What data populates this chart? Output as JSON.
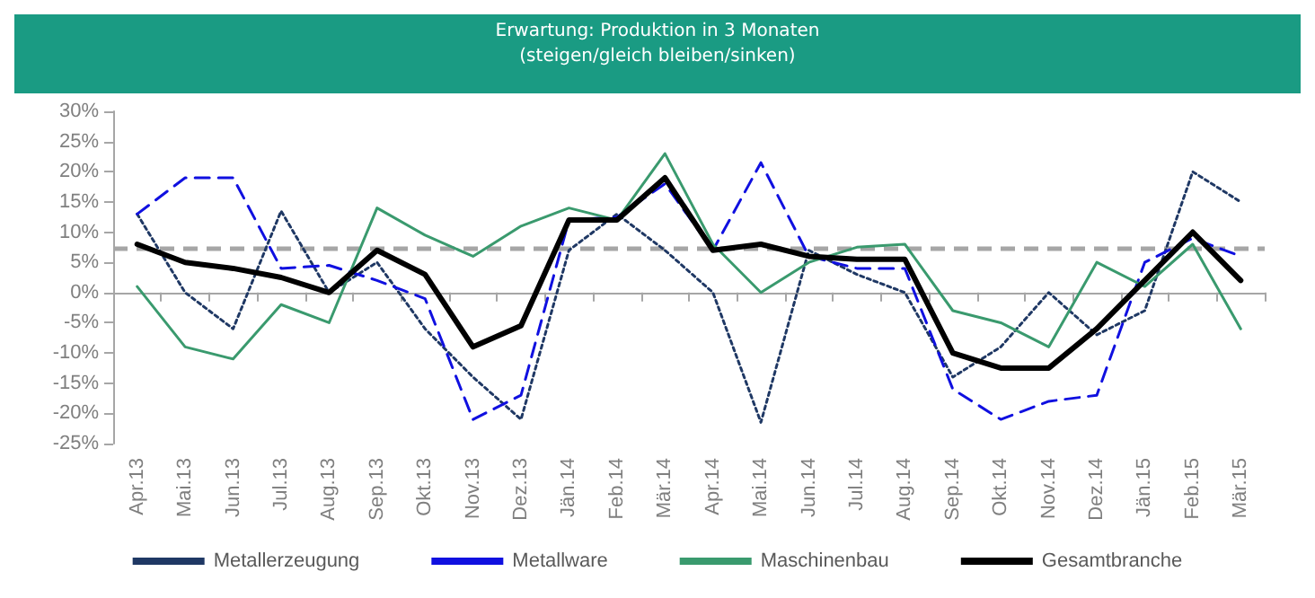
{
  "chart_data": {
    "type": "line",
    "title": "Erwartung: Produktion in 3 Monaten",
    "subtitle": "(steigen/gleich bleiben/sinken)",
    "categories": [
      "Apr.13",
      "Mai.13",
      "Jun.13",
      "Jul.13",
      "Aug.13",
      "Sep.13",
      "Okt.13",
      "Nov.13",
      "Dez.13",
      "Jän.14",
      "Feb.14",
      "Mär.14",
      "Apr.14",
      "Mai.14",
      "Jun.14",
      "Jul.14",
      "Aug.14",
      "Sep.14",
      "Okt.14",
      "Nov.14",
      "Dez.14",
      "Jän.15",
      "Feb.15",
      "Mär.15"
    ],
    "series": [
      {
        "name": "Metallerzeugung",
        "color": "#1f3864",
        "line_style": "dotted",
        "values": [
          13,
          0,
          -6,
          13.5,
          0,
          5,
          -6,
          -14,
          -21,
          7,
          13,
          7,
          0,
          -21.5,
          7,
          3,
          0,
          -14,
          -9,
          0,
          -7,
          -3,
          20,
          15
        ]
      },
      {
        "name": "Metallware",
        "color": "#1010e0",
        "line_style": "dashed",
        "values": [
          13,
          19,
          19,
          4,
          4.5,
          2,
          -1,
          -21,
          -17,
          12,
          12.5,
          18,
          7,
          21.5,
          6,
          4,
          4,
          -16,
          -21,
          -18,
          -17,
          5,
          9,
          6
        ]
      },
      {
        "name": "Maschinenbau",
        "color": "#3a9a6e",
        "line_style": "solid",
        "values": [
          1,
          -9,
          -11,
          -2,
          -5,
          14,
          9.5,
          6,
          11,
          14,
          12,
          23,
          8,
          0,
          5,
          7.5,
          8,
          -3,
          -5,
          -9,
          5,
          1,
          8,
          -6
        ]
      },
      {
        "name": "Gesamtbranche",
        "color": "#000000",
        "line_style": "solid",
        "values": [
          8,
          5,
          4,
          2.5,
          0,
          7,
          3,
          -9,
          -5.5,
          12,
          12,
          19,
          7,
          8,
          6,
          5.5,
          5.5,
          -10,
          -12.5,
          -12.5,
          -6,
          2,
          10,
          2
        ]
      }
    ],
    "ref_lines": [
      {
        "axis": "y",
        "value": 7.3,
        "label": null,
        "color": "#a6a6a6",
        "line_style": "dashed"
      }
    ],
    "ylim": [
      -25,
      30
    ],
    "yticks": [
      {
        "value": -25,
        "label": "-25%"
      },
      {
        "value": -20,
        "label": "-20%"
      },
      {
        "value": -15,
        "label": "-15%"
      },
      {
        "value": -10,
        "label": "-10%"
      },
      {
        "value": -5,
        "label": "-5%"
      },
      {
        "value": 0,
        "label": "0%"
      },
      {
        "value": 5,
        "label": "5%"
      },
      {
        "value": 10,
        "label": "10%"
      },
      {
        "value": 15,
        "label": "15%"
      },
      {
        "value": 20,
        "label": "20%"
      },
      {
        "value": 25,
        "label": "25%"
      },
      {
        "value": 30,
        "label": "30%"
      }
    ],
    "legend": "bottom",
    "marker": "none"
  }
}
